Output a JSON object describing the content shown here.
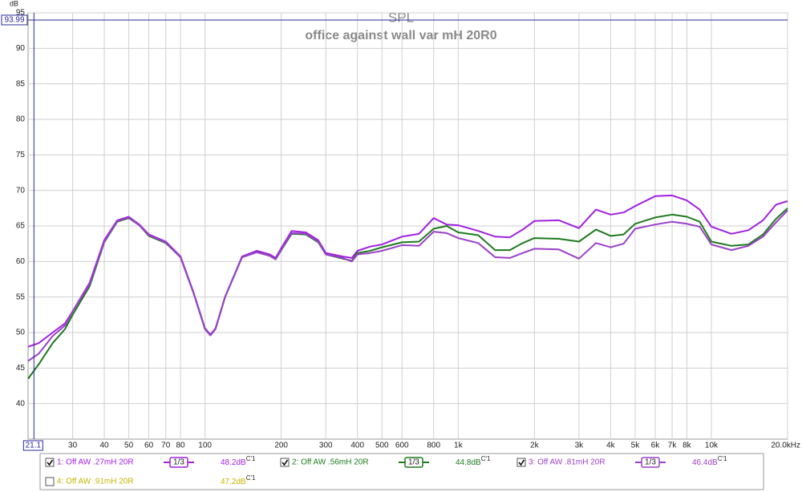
{
  "chart_data": {
    "type": "line",
    "title": "SPL",
    "subtitle": "office against wall var mH 20R0",
    "y_label": "dB",
    "xscale": "log",
    "grid": true,
    "xlim": [
      20,
      20000
    ],
    "ylim": [
      35,
      95
    ],
    "yticks": [
      40,
      45,
      50,
      55,
      60,
      65,
      70,
      75,
      80,
      85,
      90,
      95
    ],
    "xticks": [
      30,
      40,
      50,
      60,
      70,
      80,
      100,
      200,
      300,
      400,
      500,
      600,
      800,
      {
        "value": 1000,
        "label": "1k"
      },
      {
        "value": 2000,
        "label": "2k"
      },
      {
        "value": 3000,
        "label": "3k"
      },
      {
        "value": 4000,
        "label": "4k"
      },
      {
        "value": 5000,
        "label": "5k"
      },
      {
        "value": 6000,
        "label": "6k"
      },
      {
        "value": 7000,
        "label": "7k"
      },
      {
        "value": 8000,
        "label": "8k"
      },
      {
        "value": 10000,
        "label": "10k"
      },
      {
        "value": 20000,
        "label": "20.0kHz"
      }
    ],
    "cursor": {
      "x": {
        "value": 21.1,
        "label": "21.1"
      },
      "y": {
        "value": 93.99,
        "label": "93.99"
      }
    },
    "x": [
      20,
      22,
      25,
      28,
      30,
      35,
      40,
      45,
      50,
      55,
      60,
      70,
      80,
      90,
      100,
      105,
      110,
      120,
      140,
      160,
      180,
      190,
      200,
      220,
      250,
      280,
      300,
      350,
      380,
      400,
      450,
      500,
      600,
      700,
      800,
      900,
      1000,
      1200,
      1400,
      1600,
      1800,
      2000,
      2500,
      3000,
      3500,
      4000,
      4500,
      5000,
      6000,
      7000,
      8000,
      9000,
      10000,
      12000,
      14000,
      16000,
      18000,
      20000
    ],
    "series": [
      {
        "name": "1: Off AW .27mH 20R",
        "color": "#a020e0",
        "checked": true,
        "smoothing": "1/3",
        "level": "48.2dB",
        "level_suffix": "C'1",
        "values": [
          48,
          48.5,
          50,
          51.3,
          53,
          57,
          63,
          65.8,
          66.3,
          65.2,
          63.8,
          62.8,
          60.7,
          55.7,
          50.6,
          49.7,
          50.6,
          55,
          60.7,
          61.5,
          61,
          60.5,
          61.9,
          64.3,
          64.1,
          63,
          61.2,
          60.7,
          60.5,
          61.5,
          62.1,
          62.4,
          63.5,
          63.9,
          66.1,
          65.2,
          65.1,
          64.3,
          63.5,
          63.4,
          64.5,
          65.7,
          65.8,
          64.7,
          67.3,
          66.6,
          66.9,
          67.8,
          69.2,
          69.3,
          68.6,
          67.3,
          64.9,
          63.9,
          64.4,
          65.8,
          68,
          68.5
        ]
      },
      {
        "name": "2: Off AW .56mH 20R",
        "color": "#1e7a1e",
        "checked": true,
        "smoothing": "1/3",
        "level": "44.8dB",
        "level_suffix": "C'1",
        "values": [
          43.5,
          45.5,
          48.5,
          50.5,
          52.5,
          56.5,
          62.7,
          65.6,
          66.1,
          65.1,
          63.6,
          62.6,
          60.6,
          55.6,
          50.5,
          49.6,
          50.5,
          55,
          60.6,
          61.3,
          60.8,
          60.3,
          61.6,
          63.9,
          63.8,
          62.7,
          61,
          60.4,
          60.1,
          61.2,
          61.5,
          62,
          62.7,
          62.8,
          64.6,
          65,
          64.1,
          63.7,
          61.6,
          61.6,
          62.6,
          63.3,
          63.2,
          62.8,
          64.5,
          63.6,
          63.8,
          65.3,
          66.2,
          66.6,
          66.3,
          65.6,
          62.8,
          62.2,
          62.4,
          63.8,
          66,
          67.5
        ]
      },
      {
        "name": "3: Off AW .81mH 20R",
        "color": "#9a40c8",
        "checked": true,
        "smoothing": "1/3",
        "level": "46.4dB",
        "level_suffix": "C'1",
        "values": [
          46,
          47,
          49.5,
          51,
          53,
          56.8,
          62.8,
          65.7,
          66.2,
          65.1,
          63.7,
          62.7,
          60.6,
          55.6,
          50.5,
          49.6,
          50.5,
          55,
          60.6,
          61.3,
          60.8,
          60.3,
          61.7,
          64,
          63.9,
          62.8,
          61,
          60.5,
          60,
          61,
          61.2,
          61.5,
          62.3,
          62.2,
          64.2,
          64,
          63.3,
          62.6,
          60.6,
          60.5,
          61.2,
          61.8,
          61.7,
          60.4,
          62.6,
          62,
          62.5,
          64.6,
          65.2,
          65.6,
          65.3,
          64.9,
          62.4,
          61.6,
          62.2,
          63.5,
          65.5,
          67.2
        ]
      },
      {
        "name": "4: Off AW .91mH 20R",
        "color": "#c8b400",
        "checked": false,
        "level": "47.2dB",
        "level_suffix": "C'1"
      }
    ]
  }
}
